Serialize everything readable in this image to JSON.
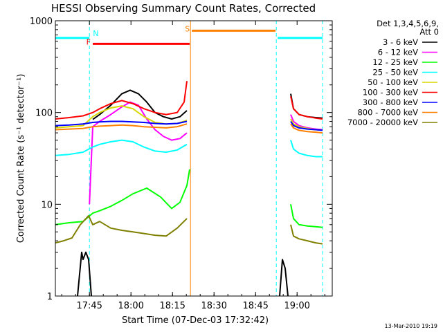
{
  "chart_data": {
    "type": "line",
    "title": "HESSI Observing Summary Count Rates, Corrected",
    "xlabel": "Start Time (07-Dec-03 17:32:42)",
    "ylabel": "Corrected Count Rate (s⁻¹ detector⁻¹)",
    "x_start": "17:32:42",
    "xlim_minutes": [
      0,
      100
    ],
    "x_ticks": [
      {
        "label": "17:45",
        "minute": 12.3
      },
      {
        "label": "18:00",
        "minute": 27.3
      },
      {
        "label": "18:15",
        "minute": 42.3
      },
      {
        "label": "18:30",
        "minute": 57.3
      },
      {
        "label": "18:45",
        "minute": 72.3
      },
      {
        "label": "19:00",
        "minute": 87.3
      }
    ],
    "y_scale": "log",
    "ylim": [
      1,
      1000
    ],
    "y_ticks": [
      {
        "label": "1",
        "value": 1
      },
      {
        "label": "10",
        "value": 10
      },
      {
        "label": "100",
        "value": 100
      },
      {
        "label": "1000",
        "value": 1000
      }
    ],
    "legend": {
      "position": "top-right",
      "header": [
        "Det 1,3,4,5,6,9,",
        "Att 0"
      ],
      "entries": [
        {
          "label": "3 - 6 keV",
          "color": "#000000"
        },
        {
          "label": "6 - 12 keV",
          "color": "#ff00ff"
        },
        {
          "label": "12 - 25 keV",
          "color": "#00ff00"
        },
        {
          "label": "25 - 50 keV",
          "color": "#00ffff"
        },
        {
          "label": "50 - 100 keV",
          "color": "#d8d800"
        },
        {
          "label": "100 - 300 keV",
          "color": "#ff0000"
        },
        {
          "label": "300 - 800 keV",
          "color": "#0000ff"
        },
        {
          "label": "800 - 7000 keV",
          "color": "#ff8000"
        },
        {
          "label": "7000 - 20000 keV",
          "color": "#808000"
        }
      ]
    },
    "series": [
      {
        "name": "3 - 6 keV",
        "color": "#000000",
        "segments": [
          {
            "x": [
              8,
              9.5,
              10,
              11,
              12,
              13
            ],
            "y": [
              1,
              3,
              2.5,
              3,
              2.5,
              1
            ]
          },
          {
            "x": [
              13.5,
              16,
              20,
              24,
              27,
              30,
              33,
              36,
              39,
              42,
              45,
              47.5
            ],
            "y": [
              84,
              95,
              120,
              160,
              175,
              160,
              130,
              100,
              90,
              85,
              90,
              105
            ]
          },
          {
            "x": [
              81,
              82,
              83,
              84
            ],
            "y": [
              1,
              2.5,
              2,
              1
            ]
          },
          {
            "x": [
              85,
              86,
              88,
              91,
              94,
              96.5
            ],
            "y": [
              160,
              110,
              95,
              90,
              88,
              87
            ]
          }
        ]
      },
      {
        "name": "6 - 12 keV",
        "color": "#ff00ff",
        "segments": [
          {
            "x": [
              12.3,
              13.5,
              16,
              20,
              24,
              27,
              30,
              33,
              36,
              39,
              42,
              45,
              47.5
            ],
            "y": [
              10,
              70,
              80,
              95,
              115,
              130,
              120,
              85,
              65,
              55,
              50,
              52,
              60
            ]
          },
          {
            "x": [
              85,
              86,
              88,
              91,
              94,
              96.5
            ],
            "y": [
              95,
              80,
              72,
              68,
              66,
              65
            ]
          }
        ]
      },
      {
        "name": "12 - 25 keV",
        "color": "#00ff00",
        "segments": [
          {
            "x": [
              0,
              5,
              10,
              13.5,
              16,
              20,
              24,
              28,
              33,
              38,
              42,
              45,
              47.5,
              48.5
            ],
            "y": [
              6,
              6.3,
              6.5,
              8,
              8.5,
              9.5,
              11,
              13,
              15,
              12,
              9,
              10.5,
              16,
              24
            ]
          },
          {
            "x": [
              85,
              86,
              88,
              91,
              94,
              96.5
            ],
            "y": [
              10,
              7,
              6,
              5.8,
              5.7,
              5.6
            ]
          }
        ]
      },
      {
        "name": "25 - 50 keV",
        "color": "#00ffff",
        "segments": [
          {
            "x": [
              0,
              5,
              10,
              13.5,
              16,
              20,
              24,
              28,
              32,
              36,
              40,
              44,
              47.5
            ],
            "y": [
              34,
              35,
              37,
              42,
              45,
              48,
              50,
              48,
              42,
              38,
              37,
              39,
              45
            ]
          },
          {
            "x": [
              85,
              86,
              88,
              91,
              94,
              96.5
            ],
            "y": [
              50,
              40,
              36,
              34,
              33,
              33
            ]
          }
        ]
      },
      {
        "name": "50 - 100 keV",
        "color": "#d8d800",
        "segments": [
          {
            "x": [
              0,
              5,
              10,
              13.5,
              16,
              20,
              24,
              28,
              32,
              36,
              40,
              44,
              47.5
            ],
            "y": [
              68,
              70,
              72,
              90,
              100,
              112,
              118,
              110,
              90,
              78,
              75,
              76,
              82
            ]
          },
          {
            "x": [
              85,
              86,
              88,
              91,
              94,
              96.5
            ],
            "y": [
              85,
              75,
              70,
              67,
              65,
              64
            ]
          }
        ]
      },
      {
        "name": "100 - 300 keV",
        "color": "#ff0000",
        "segments": [
          {
            "x": [
              0,
              5,
              10,
              13.5,
              16,
              20,
              24,
              28,
              32,
              36,
              40,
              44,
              46.5,
              47.5
            ],
            "y": [
              85,
              88,
              92,
              100,
              110,
              125,
              135,
              125,
              110,
              100,
              95,
              100,
              130,
              220
            ]
          },
          {
            "x": [
              85,
              86,
              88,
              91,
              94,
              96.5
            ],
            "y": [
              150,
              110,
              95,
              90,
              87,
              85
            ]
          }
        ]
      },
      {
        "name": "300 - 800 keV",
        "color": "#0000ff",
        "segments": [
          {
            "x": [
              0,
              5,
              10,
              13.5,
              16,
              20,
              24,
              28,
              32,
              36,
              40,
              44,
              47.5
            ],
            "y": [
              72,
              73,
              75,
              78,
              79,
              80,
              80,
              79,
              78,
              76,
              75,
              76,
              80
            ]
          },
          {
            "x": [
              85,
              86,
              88,
              91,
              94,
              96.5
            ],
            "y": [
              80,
              72,
              68,
              66,
              65,
              64
            ]
          }
        ]
      },
      {
        "name": "800 - 7000 keV",
        "color": "#ff8000",
        "segments": [
          {
            "x": [
              0,
              5,
              10,
              13.5,
              16,
              20,
              24,
              28,
              32,
              36,
              40,
              44,
              47.5
            ],
            "y": [
              65,
              66,
              67,
              70,
              71,
              72,
              73,
              72,
              70,
              69,
              68,
              70,
              75
            ]
          },
          {
            "x": [
              85,
              86,
              88,
              91,
              94,
              96.5
            ],
            "y": [
              75,
              68,
              64,
              62,
              61,
              60
            ]
          }
        ]
      },
      {
        "name": "7000 - 20000 keV",
        "color": "#808000",
        "segments": [
          {
            "x": [
              0,
              3,
              6,
              9,
              12,
              13.5,
              16,
              20,
              24,
              28,
              32,
              36,
              40,
              44,
              47.5
            ],
            "y": [
              3.8,
              4,
              4.3,
              6,
              7.5,
              6,
              6.5,
              5.5,
              5.2,
              5,
              4.8,
              4.6,
              4.5,
              5.5,
              7
            ]
          },
          {
            "x": [
              85,
              86,
              88,
              91,
              94,
              96.5
            ],
            "y": [
              6,
              4.5,
              4.2,
              4,
              3.8,
              3.7
            ]
          }
        ]
      }
    ],
    "vertical_markers": [
      {
        "minute": 12.3,
        "color": "#00ffff",
        "style": "dashed"
      },
      {
        "minute": 48.8,
        "color": "#ff8000",
        "style": "solid"
      },
      {
        "minute": 79.8,
        "color": "#00ffff",
        "style": "dashed"
      },
      {
        "minute": 96.5,
        "color": "#00ffff",
        "style": "dashed"
      }
    ],
    "flag_bars": [
      {
        "label": "",
        "color": "#00ffff",
        "x": [
          0,
          12.3
        ],
        "y": 650
      },
      {
        "label": "N",
        "color": "#00ffff",
        "x": [
          12.3,
          12.3
        ],
        "y": 650
      },
      {
        "label": "F",
        "color": "#ff0000",
        "x": [
          13.5,
          48.5
        ],
        "y": 560
      },
      {
        "label": "S",
        "color": "#ff8000",
        "x": [
          49.3,
          79.5
        ],
        "y": 780
      },
      {
        "label": "",
        "color": "#00ffff",
        "x": [
          80.3,
          96.5
        ],
        "y": 650
      }
    ],
    "footer_date": "13-Mar-2010 19:19"
  }
}
